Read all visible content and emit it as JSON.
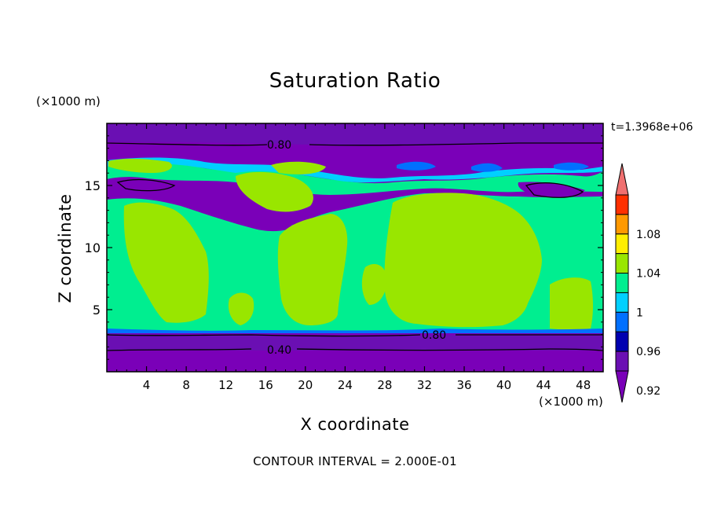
{
  "chart_data": {
    "type": "heatmap",
    "title": "Saturation Ratio",
    "xlabel": "X coordinate",
    "ylabel": "Z coordinate",
    "x_units": "(×1000 m)",
    "y_units": "(×1000 m)",
    "time_label": "t=1.3968e+06",
    "footer": "CONTOUR INTERVAL = 2.000E-01",
    "xlim": [
      0,
      50
    ],
    "ylim": [
      0,
      20
    ],
    "x_ticks": [
      "4",
      "8",
      "12",
      "16",
      "20",
      "24",
      "28",
      "32",
      "36",
      "40",
      "44",
      "48"
    ],
    "y_ticks": [
      "5",
      "10",
      "15"
    ],
    "contour_labels": [
      "0.80",
      "0.80",
      "0.40"
    ],
    "colorbar": {
      "labels": [
        "1.08",
        "1.04",
        "1",
        "0.96",
        "0.92"
      ],
      "colors": [
        "#f07070",
        "#ff3000",
        "#ff9900",
        "#ffee00",
        "#99e600",
        "#00ee90",
        "#00d0ff",
        "#0070ff",
        "#0000b0",
        "#6a0fb3",
        "#7a00b8"
      ]
    },
    "bands": [
      {
        "z_from": 0,
        "z_to": 3.3,
        "value": "below 0.92"
      },
      {
        "z_from": 3.3,
        "z_to": 16.5,
        "value": "0.96-1.02"
      },
      {
        "z_from": 16.5,
        "z_to": 19.5,
        "value": "below 0.92"
      }
    ]
  }
}
